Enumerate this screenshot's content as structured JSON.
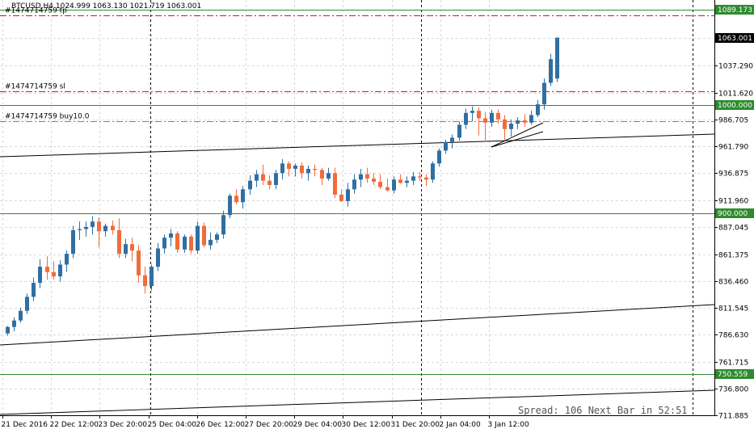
{
  "header": {
    "symbol_info": "BTCUSD,H4  1024.999 1063.130 1021.719 1063.001"
  },
  "status": {
    "spread_text": "Spread: 106 Next Bar in 52:51"
  },
  "colors": {
    "bull": "#2f6fa3",
    "bear": "#f26b3a",
    "hline": "#2e8b2e",
    "tp_sl": "#d11a1a",
    "entry": "#3cb043",
    "trend": "#000000",
    "grid": "#d9d9d9",
    "current_price_bg": "#000000"
  },
  "chart_data": {
    "type": "candlestick",
    "symbol": "BTCUSD",
    "timeframe": "H4",
    "ylim": [
      711.885,
      1098
    ],
    "y_ticks": [
      "711.885",
      "736.800",
      "761.715",
      "786.630",
      "811.545",
      "836.460",
      "861.375",
      "887.045",
      "911.960",
      "936.875",
      "961.790",
      "986.705",
      "1011.620",
      "1037.290",
      "1063.001",
      "1089.173"
    ],
    "x_ticks": [
      "21 Dec 2016",
      "22 Dec 12:00",
      "23 Dec 20:00",
      "25 Dec 04:00",
      "26 Dec 12:00",
      "27 Dec 20:00",
      "29 Dec 04:00",
      "30 Dec 12:00",
      "31 Dec 20:00",
      "2 Jan 04:00",
      "3 Jan 12:00"
    ],
    "candles": [
      [
        788,
        795,
        786,
        794
      ],
      [
        794,
        803,
        790,
        800
      ],
      [
        800,
        812,
        798,
        809
      ],
      [
        809,
        825,
        806,
        822
      ],
      [
        822,
        840,
        818,
        835
      ],
      [
        835,
        857,
        830,
        850
      ],
      [
        850,
        860,
        838,
        845
      ],
      [
        845,
        855,
        838,
        841
      ],
      [
        841,
        856,
        836,
        852
      ],
      [
        852,
        865,
        845,
        862
      ],
      [
        862,
        888,
        858,
        884
      ],
      [
        884,
        892,
        875,
        885
      ],
      [
        885,
        892,
        878,
        887
      ],
      [
        887,
        897,
        880,
        892
      ],
      [
        892,
        896,
        868,
        883
      ],
      [
        883,
        890,
        878,
        888
      ],
      [
        888,
        893,
        880,
        884
      ],
      [
        884,
        895,
        858,
        862
      ],
      [
        862,
        876,
        858,
        871
      ],
      [
        871,
        877,
        855,
        865
      ],
      [
        865,
        870,
        835,
        842
      ],
      [
        842,
        850,
        825,
        832
      ],
      [
        832,
        852,
        828,
        850
      ],
      [
        850,
        872,
        846,
        867
      ],
      [
        867,
        880,
        862,
        877
      ],
      [
        877,
        885,
        869,
        881
      ],
      [
        881,
        883,
        863,
        866
      ],
      [
        866,
        880,
        863,
        878
      ],
      [
        878,
        880,
        862,
        865
      ],
      [
        865,
        892,
        862,
        888
      ],
      [
        888,
        891,
        868,
        870
      ],
      [
        870,
        882,
        866,
        875
      ],
      [
        875,
        882,
        872,
        880
      ],
      [
        880,
        902,
        876,
        898
      ],
      [
        898,
        918,
        895,
        916
      ],
      [
        916,
        922,
        908,
        910
      ],
      [
        910,
        925,
        904,
        922
      ],
      [
        922,
        935,
        917,
        930
      ],
      [
        930,
        940,
        924,
        936
      ],
      [
        936,
        945,
        926,
        930
      ],
      [
        930,
        935,
        922,
        926
      ],
      [
        926,
        940,
        922,
        937
      ],
      [
        937,
        950,
        931,
        946
      ],
      [
        946,
        948,
        934,
        941
      ],
      [
        941,
        946,
        934,
        944
      ],
      [
        944,
        947,
        932,
        937
      ],
      [
        937,
        944,
        930,
        941
      ],
      [
        941,
        945,
        934,
        940
      ],
      [
        940,
        942,
        926,
        932
      ],
      [
        932,
        942,
        930,
        937
      ],
      [
        937,
        942,
        914,
        917
      ],
      [
        917,
        922,
        910,
        911
      ],
      [
        911,
        928,
        906,
        922
      ],
      [
        922,
        936,
        918,
        931
      ],
      [
        931,
        941,
        924,
        936
      ],
      [
        936,
        942,
        928,
        932
      ],
      [
        932,
        937,
        926,
        929
      ],
      [
        929,
        936,
        922,
        924
      ],
      [
        924,
        932,
        920,
        921
      ],
      [
        921,
        934,
        918,
        931
      ],
      [
        931,
        936,
        927,
        928
      ],
      [
        928,
        934,
        924,
        930
      ],
      [
        930,
        938,
        926,
        934
      ],
      [
        934,
        938,
        930,
        933
      ],
      [
        933,
        936,
        925,
        931
      ],
      [
        931,
        948,
        928,
        946
      ],
      [
        946,
        960,
        943,
        958
      ],
      [
        958,
        968,
        955,
        966
      ],
      [
        966,
        973,
        960,
        970
      ],
      [
        970,
        985,
        967,
        982
      ],
      [
        982,
        997,
        978,
        993
      ],
      [
        993,
        999,
        985,
        995
      ],
      [
        995,
        998,
        972,
        988
      ],
      [
        988,
        994,
        966,
        984
      ],
      [
        984,
        996,
        980,
        993
      ],
      [
        993,
        996,
        983,
        987
      ],
      [
        987,
        991,
        968,
        978
      ],
      [
        978,
        987,
        971,
        983
      ],
      [
        983,
        989,
        978,
        986
      ],
      [
        986,
        992,
        980,
        984
      ],
      [
        984,
        995,
        982,
        991
      ],
      [
        991,
        1005,
        989,
        1001
      ],
      [
        1001,
        1025,
        996,
        1021
      ],
      [
        1021,
        1048,
        1018,
        1043
      ],
      [
        1024.999,
        1063.13,
        1021.719,
        1063.001
      ]
    ],
    "horizontal_levels": [
      {
        "value": 1089.173,
        "style": "solid"
      },
      {
        "value": 1000.0,
        "style": "solid"
      },
      {
        "value": 900.0,
        "style": "solid"
      },
      {
        "value": 750.559,
        "style": "solid"
      }
    ],
    "order_lines": [
      {
        "label": "#1474714759 tp",
        "value": 1083.5
      },
      {
        "label": "#1474714759 sl",
        "value": 1013.0
      },
      {
        "label": "#1474714759 buy10.0",
        "value": 985.0
      }
    ],
    "level_labels": [
      "1089.173",
      "1063.001",
      "1000.000",
      "900.000",
      "750.559"
    ]
  }
}
